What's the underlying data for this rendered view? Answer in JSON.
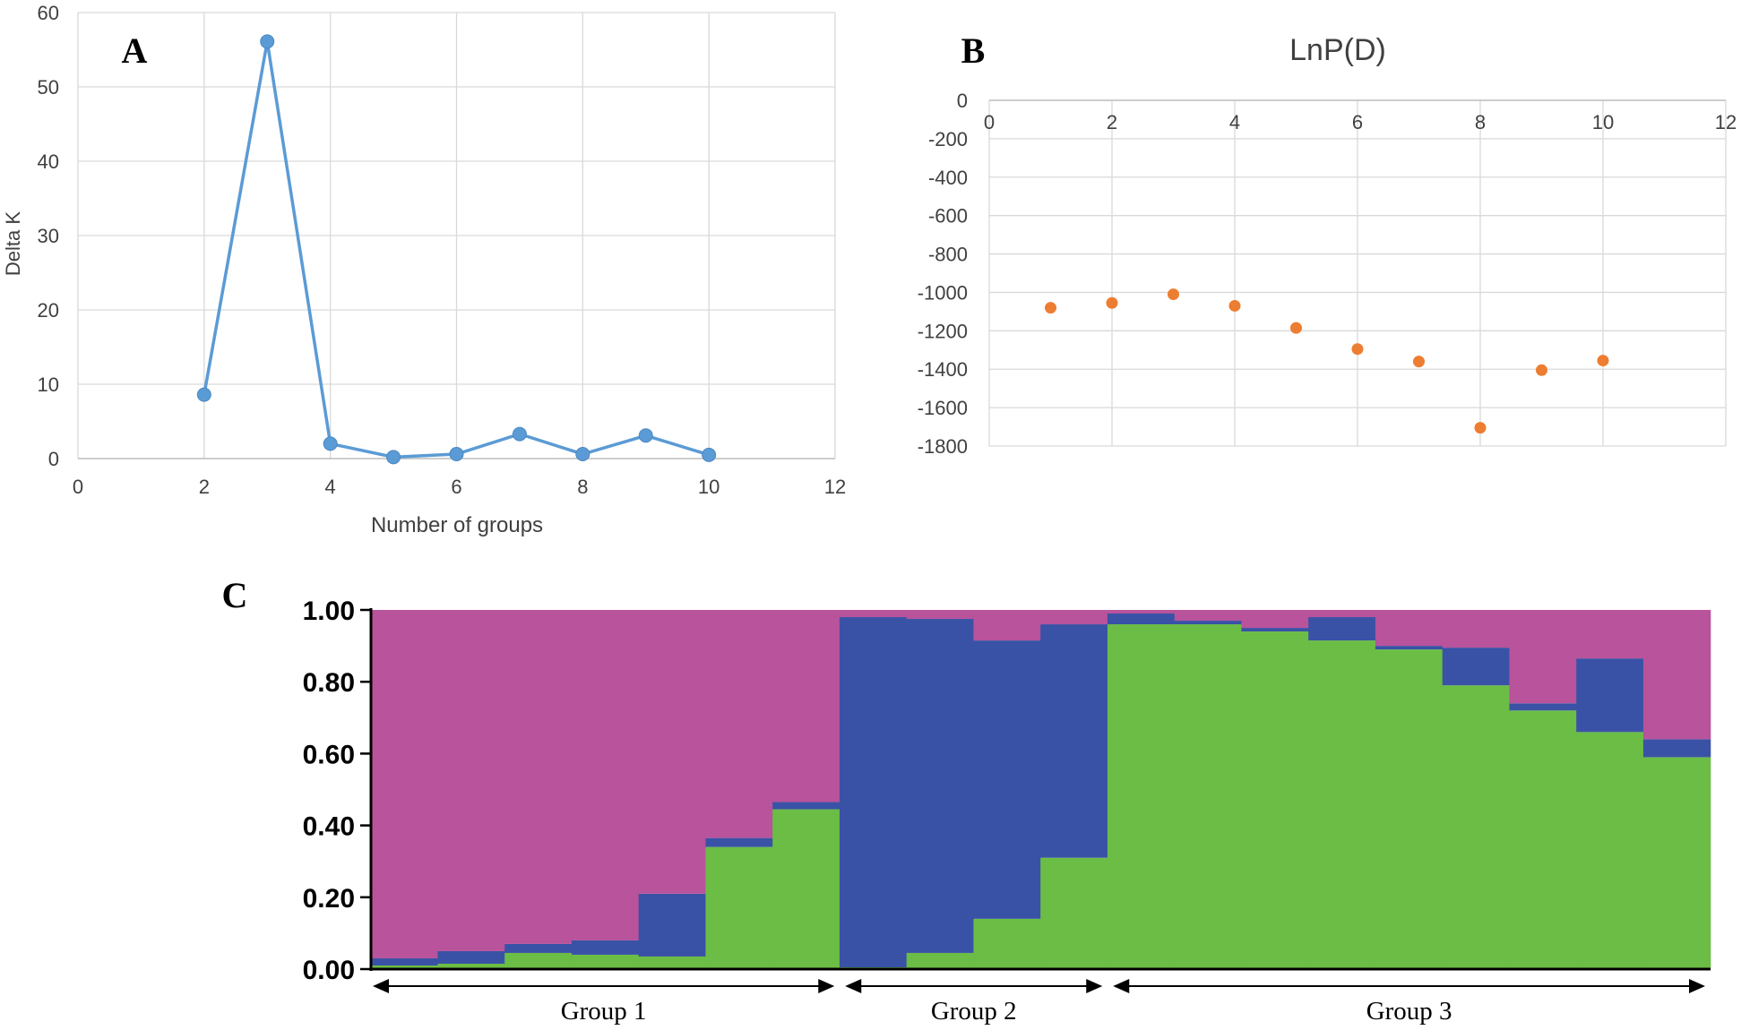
{
  "chart_data": [
    {
      "panel": "A",
      "type": "line",
      "title": "",
      "xlabel": "Number of groups",
      "ylabel": "Delta K",
      "xlim": [
        0,
        12
      ],
      "ylim": [
        0,
        60
      ],
      "x_ticks": [
        "0",
        "2",
        "4",
        "6",
        "8",
        "10",
        "12"
      ],
      "y_ticks": [
        "0",
        "10",
        "20",
        "30",
        "40",
        "50",
        "60"
      ],
      "grid": true,
      "color": "#5B9BD5",
      "x": [
        2,
        3,
        4,
        5,
        6,
        7,
        8,
        9,
        10
      ],
      "y": [
        8.6,
        56.1,
        2.0,
        0.2,
        0.6,
        3.3,
        0.6,
        3.1,
        0.5
      ]
    },
    {
      "panel": "B",
      "type": "scatter",
      "title": "LnP(D)",
      "xlabel": "",
      "ylabel": "",
      "xlim": [
        0,
        12
      ],
      "ylim": [
        -1800,
        0
      ],
      "x_ticks": [
        "0",
        "2",
        "4",
        "6",
        "8",
        "10",
        "12"
      ],
      "y_ticks": [
        "0",
        "-200",
        "-400",
        "-600",
        "-800",
        "-1000",
        "-1200",
        "-1400",
        "-1600",
        "-1800"
      ],
      "grid": true,
      "color": "#ED7D31",
      "x": [
        1,
        2,
        3,
        4,
        5,
        6,
        7,
        8,
        9,
        10
      ],
      "y": [
        -1080,
        -1055,
        -1010,
        -1070,
        -1185,
        -1295,
        -1360,
        -1705,
        -1405,
        -1355
      ]
    },
    {
      "panel": "C",
      "type": "bar",
      "subtype": "stacked-structure",
      "ylim": [
        0,
        1
      ],
      "y_ticks": [
        "0.00",
        "0.20",
        "0.40",
        "0.60",
        "0.80",
        "1.00"
      ],
      "colors": {
        "green": "#6BBD45",
        "blue": "#3A52A5",
        "magenta": "#B8539C"
      },
      "series": [
        {
          "name": "green",
          "values": [
            0.01,
            0.015,
            0.045,
            0.04,
            0.035,
            0.34,
            0.445,
            0.005,
            0.045,
            0.14,
            0.31,
            0.96,
            0.96,
            0.94,
            0.915,
            0.89,
            0.79,
            0.72,
            0.66,
            0.59
          ]
        },
        {
          "name": "blue",
          "values": [
            0.02,
            0.035,
            0.025,
            0.04,
            0.175,
            0.025,
            0.02,
            0.975,
            0.93,
            0.775,
            0.65,
            0.03,
            0.01,
            0.01,
            0.065,
            0.01,
            0.105,
            0.02,
            0.205,
            0.05
          ]
        },
        {
          "name": "magenta",
          "values": [
            0.97,
            0.95,
            0.93,
            0.92,
            0.79,
            0.635,
            0.535,
            0.02,
            0.025,
            0.085,
            0.04,
            0.01,
            0.03,
            0.05,
            0.02,
            0.1,
            0.105,
            0.26,
            0.135,
            0.36
          ]
        }
      ],
      "groups": [
        {
          "label": "Group 1",
          "start": 0,
          "end": 7
        },
        {
          "label": "Group 2",
          "start": 7,
          "end": 11
        },
        {
          "label": "Group 3",
          "start": 11,
          "end": 20
        }
      ]
    }
  ],
  "panel_labels": {
    "a": "A",
    "b": "B",
    "c": "C"
  }
}
